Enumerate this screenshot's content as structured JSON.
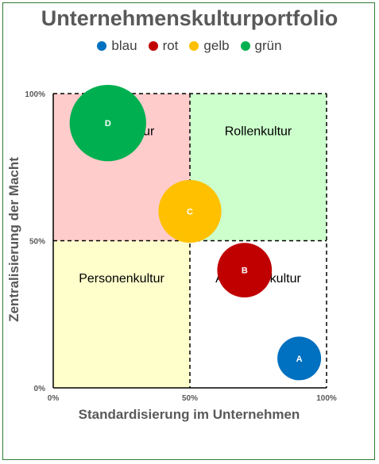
{
  "chart_data": {
    "type": "scatter",
    "title": "Unternehmenskulturportfolio",
    "xlabel": "Standardisierung im Unternehmen",
    "ylabel": "Zentralisierung der Macht",
    "xlim": [
      0,
      100
    ],
    "ylim": [
      0,
      100
    ],
    "x_ticks": [
      "0%",
      "50%",
      "100%"
    ],
    "y_ticks": [
      "0%",
      "50%",
      "100%"
    ],
    "grid": false,
    "legend_position": "top",
    "legend": [
      {
        "label": "blau",
        "color": "#0070C0"
      },
      {
        "label": "rot",
        "color": "#C00000"
      },
      {
        "label": "gelb",
        "color": "#FFC000"
      },
      {
        "label": "grün",
        "color": "#00B050"
      }
    ],
    "quadrants": [
      {
        "label": "Machtkultur",
        "x_range": [
          0,
          50
        ],
        "y_range": [
          50,
          100
        ],
        "color": "#FFCCCC"
      },
      {
        "label": "Rollenkultur",
        "x_range": [
          50,
          100
        ],
        "y_range": [
          50,
          100
        ],
        "color": "#CCFFCC"
      },
      {
        "label": "Personenkultur",
        "x_range": [
          0,
          50
        ],
        "y_range": [
          0,
          50
        ],
        "color": "#FFFFCC"
      },
      {
        "label": "Aufgabenkultur",
        "x_range": [
          50,
          100
        ],
        "y_range": [
          0,
          50
        ],
        "color": "#FFFFFF"
      }
    ],
    "points": [
      {
        "label": "A",
        "x": 90,
        "y": 10,
        "size": 16,
        "color": "#0070C0"
      },
      {
        "label": "B",
        "x": 70,
        "y": 40,
        "size": 20,
        "color": "#C00000"
      },
      {
        "label": "C",
        "x": 50,
        "y": 60,
        "size": 23,
        "color": "#FFC000"
      },
      {
        "label": "D",
        "x": 20,
        "y": 90,
        "size": 28,
        "color": "#00B050"
      }
    ]
  }
}
